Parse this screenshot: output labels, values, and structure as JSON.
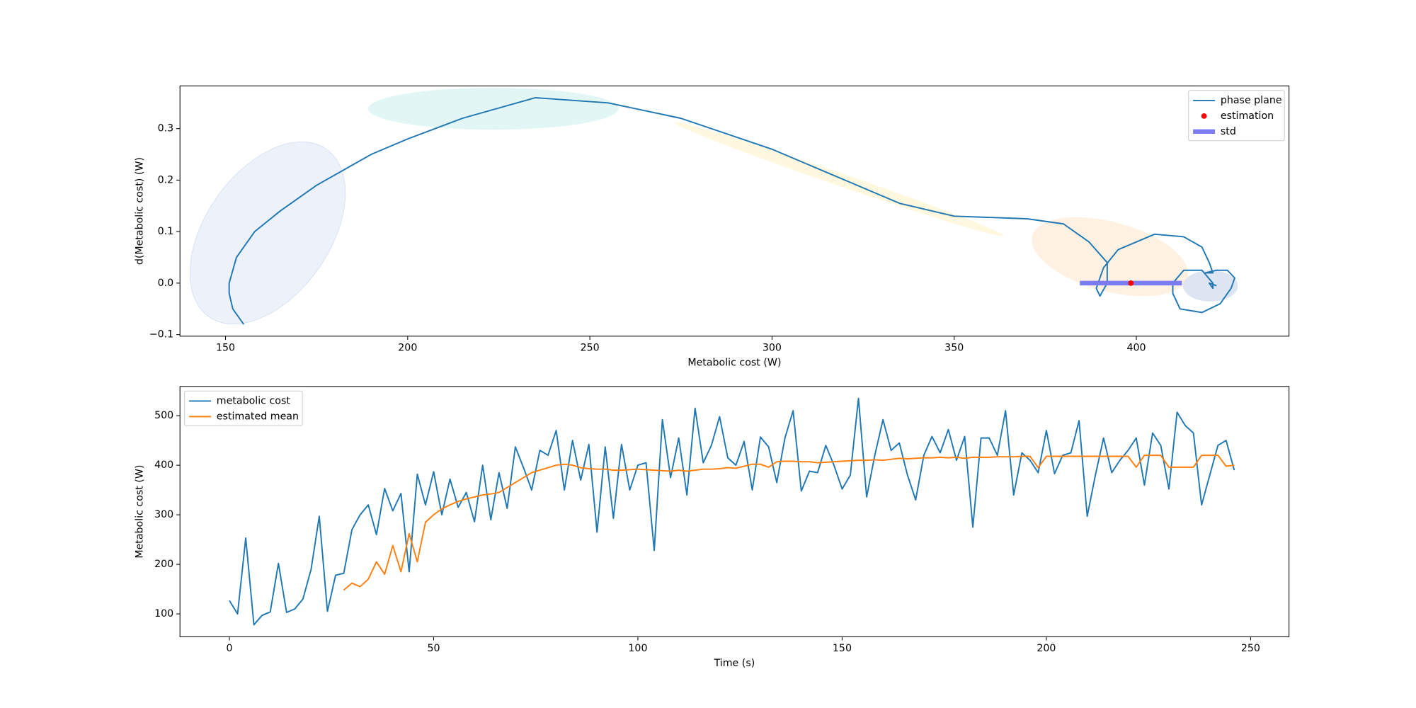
{
  "chart_data": [
    {
      "type": "line",
      "xlabel": "Metabolic cost (W)",
      "ylabel": "d(Metabolic cost) (W)",
      "xlim": [
        137.5,
        441.9
      ],
      "ylim": [
        -0.103,
        0.383
      ],
      "xticks": [
        150,
        200,
        250,
        300,
        350,
        400
      ],
      "yticks": [
        {
          "value": -0.1,
          "label": "−0.1"
        },
        {
          "value": 0,
          "label": "0.0"
        },
        0.1,
        0.2,
        0.3
      ],
      "legend": "upper right",
      "series": [
        {
          "name": "phase plane",
          "color": "#1f77b4",
          "x": [
            155,
            152,
            151,
            151,
            153,
            158,
            165,
            175,
            190,
            200,
            215,
            235,
            255,
            275,
            300,
            320,
            335,
            350,
            370,
            380,
            387,
            392,
            392,
            390,
            389,
            391,
            395,
            405,
            413,
            418,
            420,
            421,
            419,
            422,
            425,
            427,
            426,
            423,
            418,
            412,
            410,
            410,
            413,
            418,
            421,
            421,
            420,
            422
          ],
          "values": [
            -0.08,
            -0.05,
            -0.02,
            0.0,
            0.05,
            0.1,
            0.14,
            0.19,
            0.25,
            0.28,
            0.32,
            0.36,
            0.35,
            0.32,
            0.26,
            0.2,
            0.155,
            0.13,
            0.125,
            0.115,
            0.08,
            0.04,
            0.0,
            -0.025,
            -0.01,
            0.03,
            0.065,
            0.095,
            0.09,
            0.07,
            0.04,
            0.02,
            0.02,
            0.025,
            0.025,
            0.01,
            -0.01,
            -0.04,
            -0.057,
            -0.05,
            -0.02,
            0.0,
            0.025,
            0.025,
            0.0,
            -0.01,
            0.0,
            -0.005
          ]
        }
      ],
      "estimation": {
        "name": "estimation",
        "color": "#ff0000",
        "x": 398.5,
        "y": 0
      },
      "std": {
        "name": "std",
        "color": "#7b7bf5",
        "center": 398.5,
        "half_width": 14,
        "y": 0
      }
    },
    {
      "type": "line",
      "xlabel": "Time (s)",
      "ylabel": "Metabolic cost (W)",
      "xlim": [
        -12.1,
        259.4
      ],
      "ylim": [
        53.9,
        559
      ],
      "xticks": [
        0,
        50,
        100,
        150,
        200,
        250
      ],
      "yticks": [
        100,
        200,
        300,
        400,
        500
      ],
      "legend": "upper left",
      "x": [
        0,
        2,
        4,
        6,
        8,
        10,
        12,
        14,
        16,
        18,
        20,
        22,
        24,
        26,
        28,
        30,
        32,
        34,
        36,
        38,
        40,
        42,
        44,
        46,
        48,
        50,
        52,
        54,
        56,
        58,
        60,
        62,
        64,
        66,
        68,
        70,
        72,
        74,
        76,
        78,
        80,
        82,
        84,
        86,
        88,
        90,
        92,
        94,
        96,
        98,
        100,
        102,
        104,
        106,
        108,
        110,
        112,
        114,
        116,
        118,
        120,
        122,
        124,
        126,
        128,
        130,
        132,
        134,
        136,
        138,
        140,
        142,
        144,
        146,
        148,
        150,
        152,
        154,
        156,
        158,
        160,
        162,
        164,
        166,
        168,
        170,
        172,
        174,
        176,
        178,
        180,
        182,
        184,
        186,
        188,
        190,
        192,
        194,
        196,
        198,
        200,
        202,
        204,
        206,
        208,
        210,
        212,
        214,
        216,
        218,
        220,
        222,
        224,
        226,
        228,
        230,
        232,
        234,
        236,
        238,
        240,
        242,
        244,
        246
      ],
      "series": [
        {
          "name": "metabolic cost",
          "color": "#1f77b4",
          "values": [
            127,
            100,
            253,
            78,
            97,
            104,
            202,
            103,
            110,
            130,
            190,
            297,
            105,
            178,
            182,
            270,
            300,
            320,
            260,
            353,
            308,
            343,
            185,
            382,
            320,
            387,
            300,
            372,
            315,
            345,
            286,
            400,
            290,
            385,
            313,
            437,
            395,
            350,
            430,
            420,
            470,
            350,
            450,
            370,
            442,
            265,
            437,
            293,
            442,
            350,
            400,
            405,
            228,
            492,
            375,
            455,
            340,
            515,
            405,
            440,
            498,
            415,
            400,
            448,
            350,
            457,
            437,
            365,
            455,
            510,
            348,
            388,
            385,
            440,
            400,
            352,
            380,
            535,
            336,
            420,
            492,
            430,
            445,
            380,
            330,
            420,
            458,
            425,
            472,
            410,
            458,
            275,
            455,
            455,
            420,
            510,
            340,
            425,
            410,
            385,
            470,
            383,
            420,
            425,
            490,
            297,
            380,
            455,
            385,
            410,
            430,
            455,
            360,
            465,
            440,
            352,
            507,
            480,
            465,
            320,
            380,
            440,
            450,
            390
          ]
        },
        {
          "name": "estimated mean",
          "color": "#ff7f0e",
          "values": [
            null,
            null,
            null,
            null,
            null,
            null,
            null,
            null,
            null,
            null,
            null,
            null,
            null,
            null,
            148,
            162,
            155,
            170,
            205,
            180,
            238,
            185,
            262,
            205,
            285,
            300,
            312,
            320,
            327,
            332,
            336,
            340,
            342,
            345,
            355,
            365,
            375,
            385,
            390,
            395,
            400,
            402,
            400,
            395,
            393,
            392,
            392,
            390,
            390,
            391,
            392,
            391,
            390,
            389,
            388,
            390,
            388,
            390,
            392,
            392,
            393,
            395,
            394,
            398,
            402,
            402,
            396,
            407,
            408,
            408,
            407,
            407,
            405,
            406,
            407,
            408,
            409,
            410,
            410,
            411,
            410,
            412,
            414,
            413,
            414,
            415,
            415,
            416,
            415,
            416,
            414,
            416,
            416,
            416,
            417,
            417,
            417,
            418,
            418,
            395,
            418,
            418,
            418,
            418,
            418,
            418,
            418,
            418,
            418,
            418,
            418,
            396,
            420,
            420,
            420,
            396,
            396,
            396,
            396,
            420,
            420,
            420,
            398,
            400
          ]
        }
      ]
    }
  ]
}
